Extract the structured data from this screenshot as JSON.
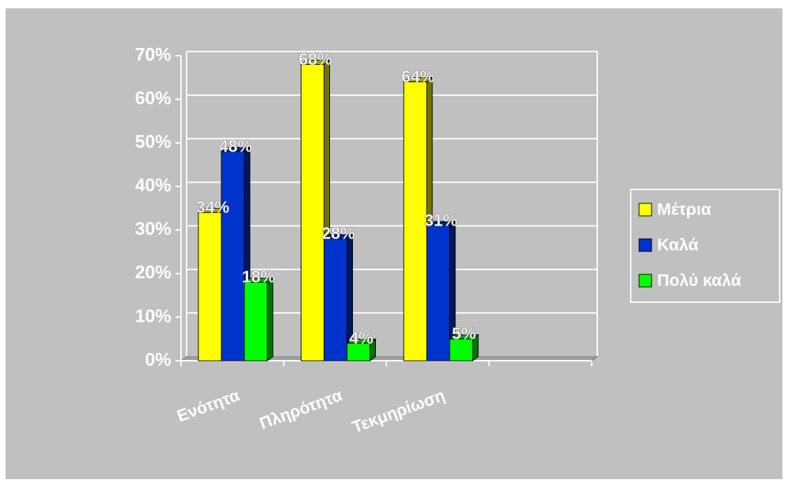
{
  "chart_data": {
    "type": "bar3d",
    "categories": [
      "Ενότητα",
      "Πληρότητα",
      "Τεκμηρίωση",
      null
    ],
    "series": [
      {
        "name": "Μέτρια",
        "color": "#ffff00",
        "values": [
          34,
          68,
          64,
          null
        ],
        "value_labels": [
          "34%",
          "68%",
          "64%",
          null
        ]
      },
      {
        "name": "Καλά",
        "color": "#0033cc",
        "values": [
          48,
          28,
          31,
          null
        ],
        "value_labels": [
          "48%",
          "28%",
          "31%",
          null
        ]
      },
      {
        "name": "Πολύ καλά",
        "color": "#00ff00",
        "values": [
          18,
          4,
          5,
          null
        ],
        "value_labels": [
          "18%",
          "4%",
          "5%",
          null
        ]
      }
    ],
    "ylim": [
      0,
      70
    ],
    "yticks": [
      {
        "value": 0,
        "label": "0%"
      },
      {
        "value": 10,
        "label": "10%"
      },
      {
        "value": 20,
        "label": "20%"
      },
      {
        "value": 30,
        "label": "30%"
      },
      {
        "value": 40,
        "label": "40%"
      },
      {
        "value": 50,
        "label": "50%"
      },
      {
        "value": 60,
        "label": "60%"
      },
      {
        "value": 70,
        "label": "70%"
      }
    ],
    "grid": true,
    "legend": "right"
  }
}
